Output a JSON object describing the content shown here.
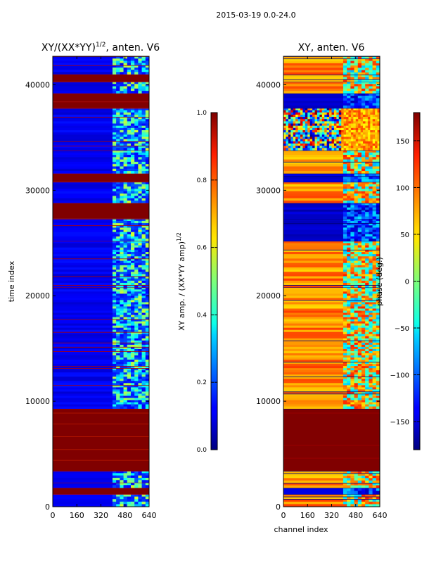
{
  "figure_title": "2015-03-19 0.0-24.0",
  "chart_data": [
    {
      "type": "heatmap",
      "title": "XY/(XX*YY)^1/2, anten. V6",
      "title_parts": [
        "XY/(XX*YY)",
        "1/2",
        ", anten. V6"
      ],
      "xlabel": "",
      "ylabel": "time index",
      "xlim": [
        0,
        640
      ],
      "ylim": [
        0,
        42700
      ],
      "xticks": [
        0,
        160,
        320,
        480,
        640
      ],
      "yticks": [
        0,
        10000,
        20000,
        30000,
        40000
      ],
      "colormap": "jet",
      "rows": [
        {
          "from": 0,
          "to": 1200,
          "kind": "low"
        },
        {
          "from": 1200,
          "to": 1800,
          "kind": "high"
        },
        {
          "from": 1800,
          "to": 2300,
          "kind": "low"
        },
        {
          "from": 2300,
          "to": 3400,
          "kind": "low"
        },
        {
          "from": 3400,
          "to": 9300,
          "kind": "high"
        },
        {
          "from": 9300,
          "to": 20800,
          "kind": "low"
        },
        {
          "from": 20800,
          "to": 25200,
          "kind": "low"
        },
        {
          "from": 25200,
          "to": 27300,
          "kind": "low"
        },
        {
          "from": 27300,
          "to": 28800,
          "kind": "high"
        },
        {
          "from": 28800,
          "to": 30800,
          "kind": "low"
        },
        {
          "from": 30800,
          "to": 31600,
          "kind": "high"
        },
        {
          "from": 31600,
          "to": 33800,
          "kind": "low"
        },
        {
          "from": 33800,
          "to": 37800,
          "kind": "low"
        },
        {
          "from": 37800,
          "to": 38400,
          "kind": "high"
        },
        {
          "from": 38400,
          "to": 39200,
          "kind": "high"
        },
        {
          "from": 39200,
          "to": 40300,
          "kind": "low"
        },
        {
          "from": 40300,
          "to": 41000,
          "kind": "high"
        },
        {
          "from": 41000,
          "to": 42700,
          "kind": "low"
        }
      ],
      "colorbar": {
        "label": "XY amp. / (XX*YY amp)^1/2",
        "label_parts": [
          "XY amp. / (XX*YY amp)",
          "1/2"
        ],
        "range": [
          0.0,
          1.0
        ],
        "ticks": [
          0.0,
          0.2,
          0.4,
          0.6,
          0.8,
          1.0
        ],
        "tick_labels": [
          "0.0",
          "0.2",
          "0.4",
          "0.6",
          "0.8",
          "1.0"
        ]
      }
    },
    {
      "type": "heatmap",
      "title": "XY, anten. V6",
      "xlabel": "channel index",
      "ylabel": "",
      "xlim": [
        0,
        640
      ],
      "ylim": [
        0,
        42700
      ],
      "xticks": [
        0,
        160,
        320,
        480,
        640
      ],
      "yticks": [
        0,
        10000,
        20000,
        30000,
        40000
      ],
      "colormap": "jet",
      "rows": [
        {
          "from": 0,
          "to": 1200,
          "kind": "mixed"
        },
        {
          "from": 1200,
          "to": 1800,
          "kind": "low"
        },
        {
          "from": 1800,
          "to": 3400,
          "kind": "mixed"
        },
        {
          "from": 3400,
          "to": 9300,
          "kind": "high"
        },
        {
          "from": 9300,
          "to": 20800,
          "kind": "mixed"
        },
        {
          "from": 20800,
          "to": 25200,
          "kind": "mixed"
        },
        {
          "from": 25200,
          "to": 27300,
          "kind": "low"
        },
        {
          "from": 27300,
          "to": 28800,
          "kind": "low"
        },
        {
          "from": 28800,
          "to": 30800,
          "kind": "mixed"
        },
        {
          "from": 30800,
          "to": 31600,
          "kind": "low"
        },
        {
          "from": 31600,
          "to": 33800,
          "kind": "mixed"
        },
        {
          "from": 33800,
          "to": 37800,
          "kind": "noise"
        },
        {
          "from": 37800,
          "to": 39200,
          "kind": "low"
        },
        {
          "from": 39200,
          "to": 40300,
          "kind": "mixed"
        },
        {
          "from": 40300,
          "to": 42700,
          "kind": "mixed"
        }
      ],
      "colorbar": {
        "label": "phase (deg.)",
        "range": [
          -180,
          180
        ],
        "ticks": [
          -150,
          -100,
          -50,
          0,
          50,
          100,
          150
        ],
        "tick_labels": [
          "−150",
          "−100",
          "−50",
          "0",
          "50",
          "100",
          "150"
        ]
      }
    }
  ]
}
